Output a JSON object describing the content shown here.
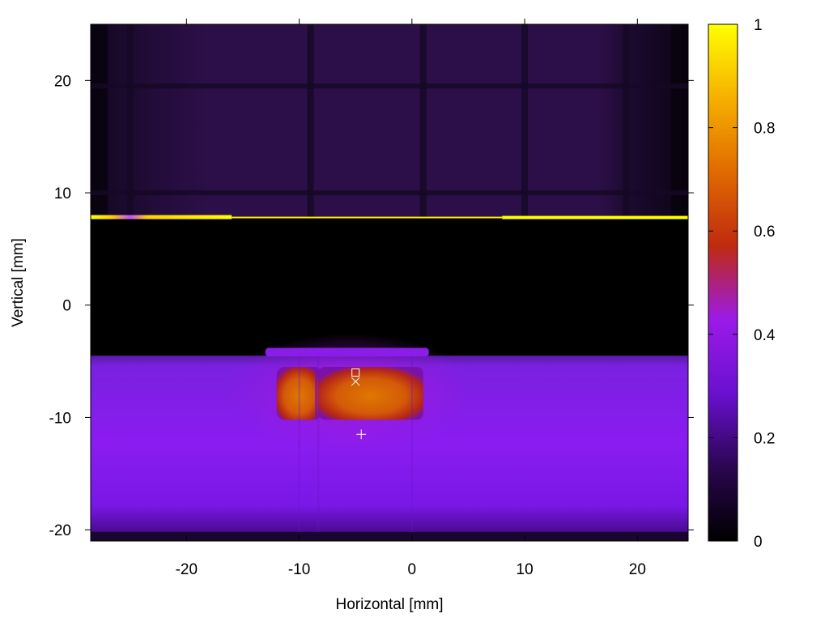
{
  "chart_data": {
    "type": "heatmap",
    "title": "",
    "xlabel": "Horizontal [mm]",
    "ylabel": "Vertical [mm]",
    "xlim": [
      -28.5,
      24.5
    ],
    "ylim": [
      -21,
      25
    ],
    "xticks": [
      -20,
      -10,
      0,
      10,
      20
    ],
    "yticks": [
      -20,
      -10,
      0,
      10,
      20
    ],
    "xtick_labels": [
      "-20",
      "-10",
      "0",
      "10",
      "20"
    ],
    "ytick_labels": [
      "-20",
      "-10",
      "0",
      "10",
      "20"
    ],
    "colorbar": {
      "range": [
        0,
        1
      ],
      "ticks": [
        0,
        0.2,
        0.4,
        0.6,
        0.8,
        1
      ],
      "tick_labels": [
        "0",
        "0.2",
        "0.4",
        "0.6",
        "0.8",
        "1"
      ],
      "colors": [
        "#000000",
        "#2a0650",
        "#6a10d0",
        "#9b1ae8",
        "#c02a10",
        "#e06a00",
        "#f6b000",
        "#ffff00"
      ]
    },
    "regions": {
      "background_top": {
        "y_range": [
          7.8,
          25
        ],
        "value": 0.08
      },
      "grid_lines_x": [
        -25,
        -9,
        1,
        10,
        19
      ],
      "grid_lines_y": [
        19.5,
        10
      ],
      "edge_line": {
        "y": 7.8,
        "value": 1.0
      },
      "dark_gap": {
        "y_range": [
          -4.5,
          7.8
        ],
        "value": 0.0
      },
      "beam_band": {
        "y_range": [
          -20.2,
          -4.5
        ],
        "value": 0.3
      },
      "hot_core": {
        "x_range": [
          -12,
          1
        ],
        "y_range": [
          -10.2,
          -5.5
        ],
        "value": 0.65
      }
    },
    "markers": [
      {
        "symbol": "square",
        "x": -5,
        "y": -6
      },
      {
        "symbol": "x",
        "x": -5,
        "y": -6.8
      },
      {
        "symbol": "plus",
        "x": -4.5,
        "y": -11.5
      }
    ],
    "grid": false,
    "legend": "none"
  }
}
